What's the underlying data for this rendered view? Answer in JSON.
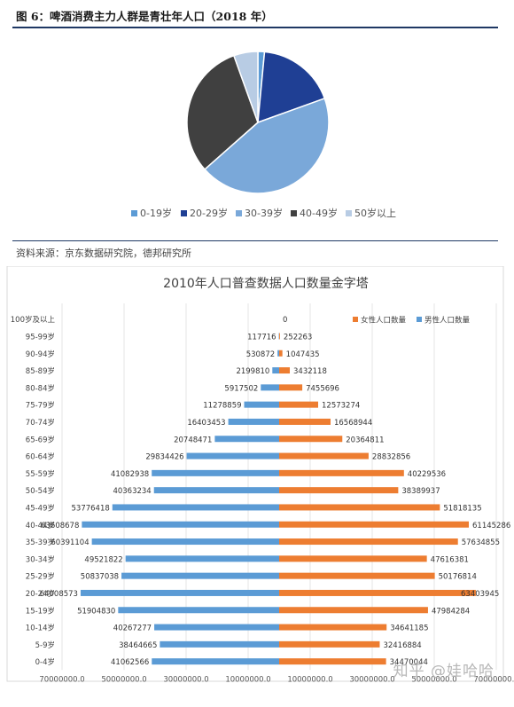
{
  "figure_title": "图 6：啤酒消费主力人群是青壮年人口（2018 年）",
  "source_note": "资料来源：京东数据研究院，德邦研究所",
  "watermark": "知乎 @娃哈哈",
  "colors": {
    "rule": "#1f3864",
    "pie": [
      "#5b9bd5",
      "#1f3f94",
      "#7aa8d9",
      "#404040",
      "#b8cce4"
    ],
    "female": "#ed7d31",
    "male": "#5b9bd5"
  },
  "chart_data": [
    {
      "type": "pie",
      "labels": [
        "0-19岁",
        "20-29岁",
        "30-39岁",
        "40-49岁",
        "50岁以上"
      ],
      "values": [
        1.5,
        18,
        44,
        31,
        5.5
      ],
      "legend_position": "bottom"
    },
    {
      "type": "bar",
      "orientation": "horizontal-population-pyramid",
      "title": "2010年人口普查数据人口数量金字塔",
      "categories": [
        "100岁及以上",
        "95-99岁",
        "90-94岁",
        "85-89岁",
        "80-84岁",
        "75-79岁",
        "70-74岁",
        "65-69岁",
        "60-64岁",
        "55-59岁",
        "50-54岁",
        "45-49岁",
        "40-44岁",
        "35-39岁",
        "30-34岁",
        "25-29岁",
        "20-24岁",
        "15-19岁",
        "10-14岁",
        "5-9岁",
        "0-4岁"
      ],
      "series": [
        {
          "name": "女性人口数量",
          "values": [
            0,
            252263,
            1047435,
            3432118,
            7455696,
            12573274,
            16568944,
            20364811,
            28832856,
            40229536,
            38389937,
            51818135,
            61145286,
            57634855,
            47616381,
            50176814,
            63403945,
            47984284,
            34641185,
            32416884,
            34470044
          ]
        },
        {
          "name": "男性人口数量",
          "values": [
            null,
            117716,
            530872,
            2199810,
            5917502,
            11278859,
            16403453,
            20748471,
            29834426,
            41082938,
            40363234,
            53776418,
            63608678,
            60391104,
            49521822,
            50837038,
            64008573,
            51904830,
            40267277,
            38464665,
            41062566
          ]
        }
      ],
      "xticks": [
        "70000000.0",
        "50000000.0",
        "30000000.0",
        "10000000.0",
        "10000000.0",
        "30000000.0",
        "50000000.0",
        "70000000.0"
      ],
      "xlim": [
        -70000000,
        70000000
      ],
      "legend_position": "top-right",
      "grid": true
    }
  ]
}
